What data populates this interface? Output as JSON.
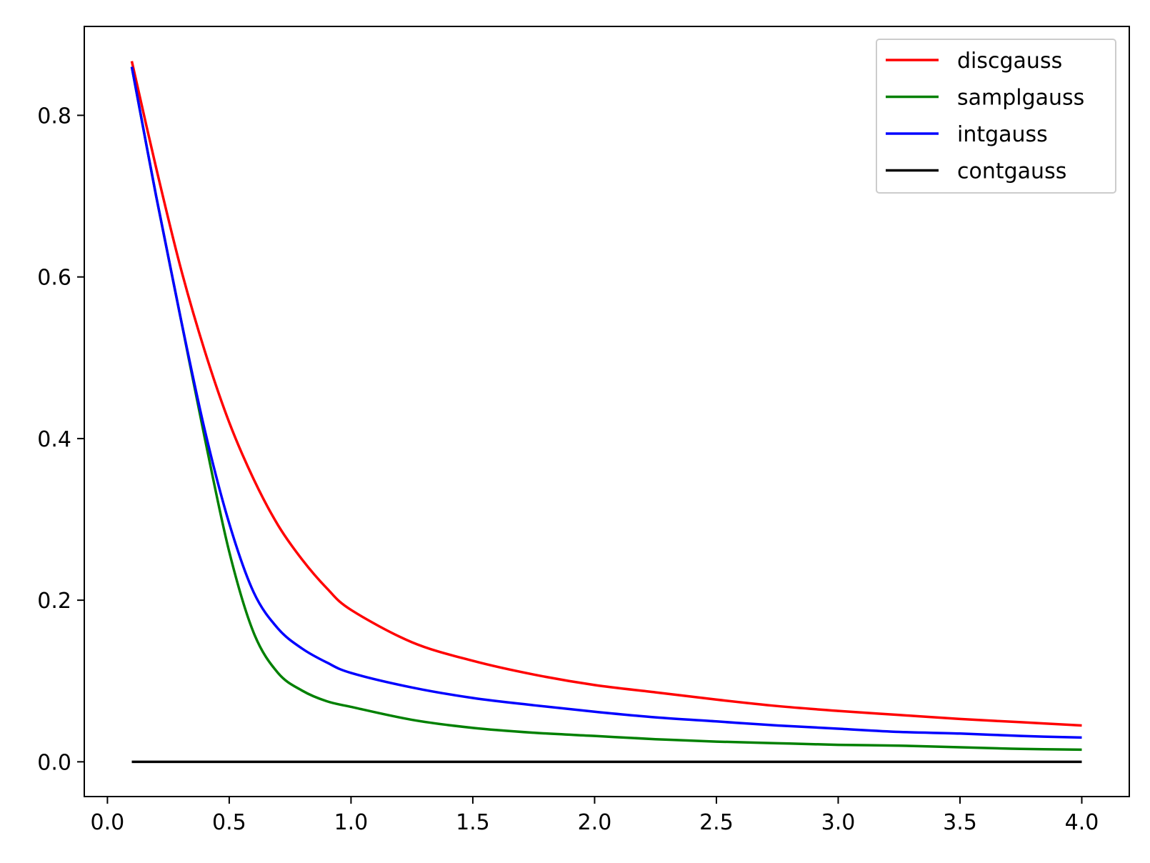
{
  "chart_data": {
    "type": "line",
    "title": "",
    "xlabel": "",
    "ylabel": "",
    "xlim": [
      -0.095,
      4.195
    ],
    "ylim": [
      -0.043,
      0.91
    ],
    "xticks": [
      0.0,
      0.5,
      1.0,
      1.5,
      2.0,
      2.5,
      3.0,
      3.5,
      4.0
    ],
    "xtick_labels": [
      "0.0",
      "0.5",
      "1.0",
      "1.5",
      "2.0",
      "2.5",
      "3.0",
      "3.5",
      "4.0"
    ],
    "yticks": [
      0.0,
      0.2,
      0.4,
      0.6,
      0.8
    ],
    "ytick_labels": [
      "0.0",
      "0.2",
      "0.4",
      "0.6",
      "0.8"
    ],
    "grid": false,
    "legend_position": "top-right",
    "x": [
      0.1,
      0.2,
      0.3,
      0.4,
      0.5,
      0.6,
      0.7,
      0.8,
      0.9,
      1.0,
      1.25,
      1.5,
      1.75,
      2.0,
      2.25,
      2.5,
      2.75,
      3.0,
      3.25,
      3.5,
      3.75,
      4.0
    ],
    "series": [
      {
        "name": "discgauss",
        "color": "#ff0000",
        "values": [
          0.867,
          0.735,
          0.612,
          0.508,
          0.42,
          0.35,
          0.293,
          0.25,
          0.215,
          0.188,
          0.148,
          0.125,
          0.108,
          0.095,
          0.086,
          0.077,
          0.069,
          0.063,
          0.058,
          0.053,
          0.049,
          0.045
        ]
      },
      {
        "name": "samplgauss",
        "color": "#008000",
        "values": [
          0.86,
          0.7,
          0.55,
          0.4,
          0.26,
          0.16,
          0.11,
          0.088,
          0.075,
          0.068,
          0.052,
          0.042,
          0.036,
          0.032,
          0.028,
          0.025,
          0.023,
          0.021,
          0.02,
          0.018,
          0.016,
          0.015
        ]
      },
      {
        "name": "intgauss",
        "color": "#0000ff",
        "values": [
          0.86,
          0.7,
          0.55,
          0.41,
          0.295,
          0.21,
          0.165,
          0.14,
          0.123,
          0.11,
          0.092,
          0.079,
          0.07,
          0.062,
          0.055,
          0.05,
          0.045,
          0.041,
          0.037,
          0.035,
          0.032,
          0.03
        ]
      },
      {
        "name": "contgauss",
        "color": "#000000",
        "values": [
          0.0,
          0.0,
          0.0,
          0.0,
          0.0,
          0.0,
          0.0,
          0.0,
          0.0,
          0.0,
          0.0,
          0.0,
          0.0,
          0.0,
          0.0,
          0.0,
          0.0,
          0.0,
          0.0,
          0.0,
          0.0,
          0.0
        ]
      }
    ]
  }
}
